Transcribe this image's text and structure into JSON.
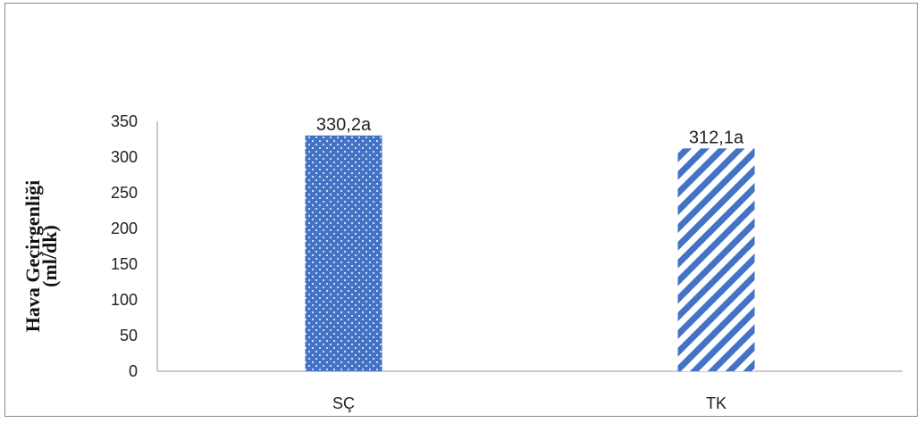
{
  "chart_data": {
    "type": "bar",
    "categories": [
      "SÇ",
      "TK"
    ],
    "values": [
      330.2,
      312.1
    ],
    "data_labels": [
      "330,2a",
      "312,1a"
    ],
    "title": "",
    "xlabel": "",
    "ylabel_lines": [
      "Hava Geçirgenliği",
      "(ml/dk)"
    ],
    "ylim": [
      0,
      350
    ],
    "yticks": [
      "0",
      "50",
      "100",
      "150",
      "200",
      "250",
      "300",
      "350"
    ],
    "grid": false,
    "legend": "none",
    "bar_patterns": [
      "dots",
      "diagonal-stripes"
    ],
    "colors": {
      "bar": "#4472c4",
      "axis": "#9a9a9a",
      "frame": "#8a8a8a"
    }
  }
}
